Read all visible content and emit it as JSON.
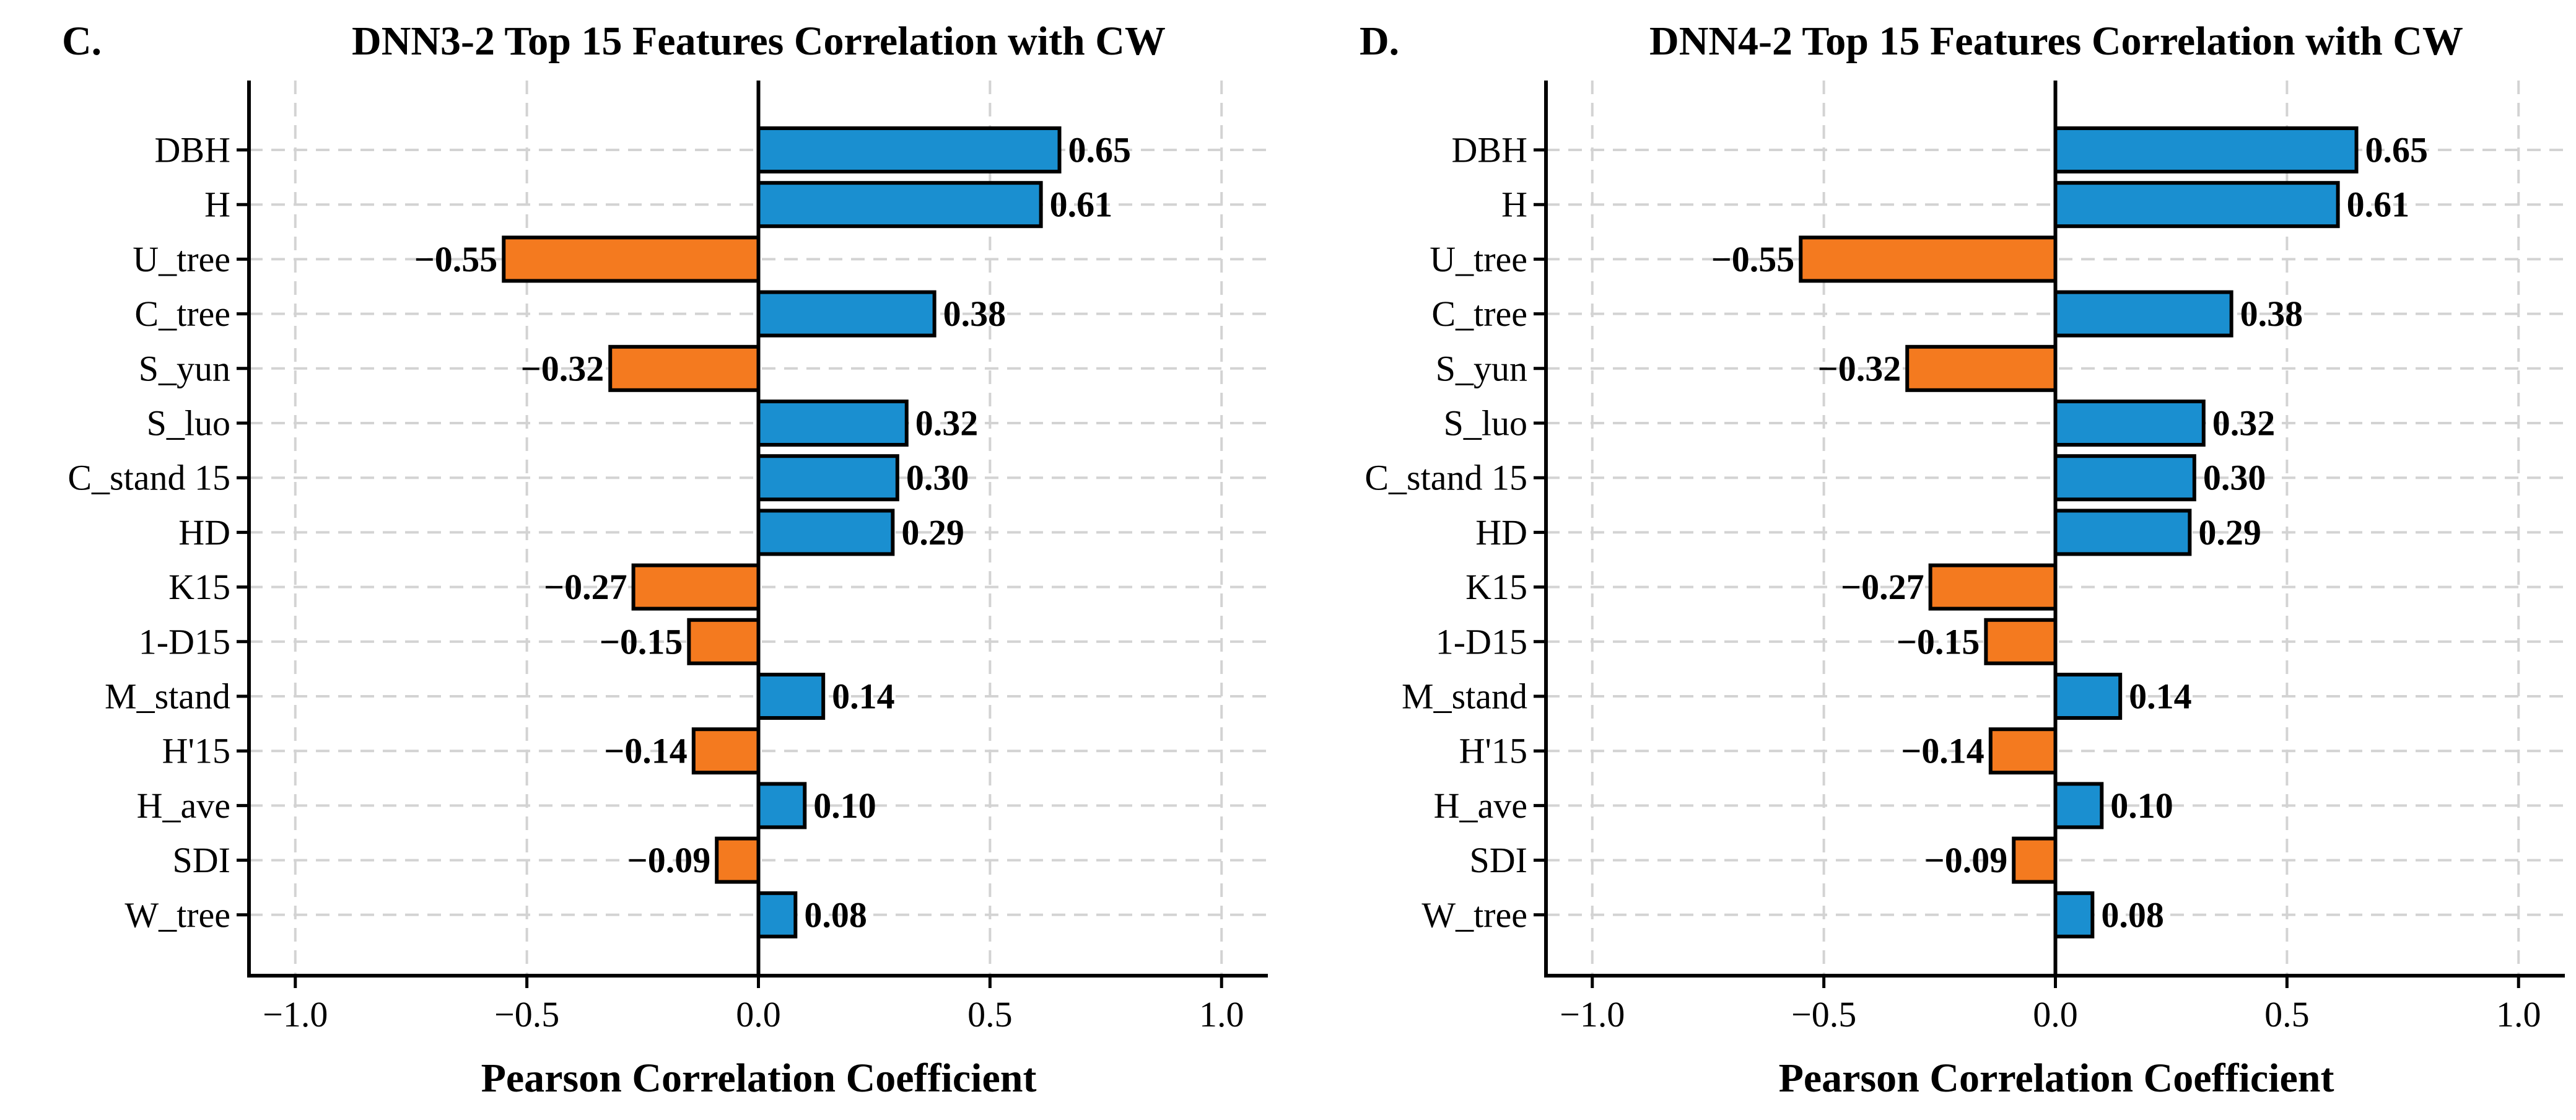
{
  "chart_data": [
    {
      "type": "bar",
      "orientation": "horizontal",
      "panel_letter": "C.",
      "title": "DNN3-2 Top 15 Features Correlation with CW",
      "xlabel": "Pearson Correlation Coefficient",
      "ylabel": "",
      "xlim": [
        -1.1,
        1.1
      ],
      "xticks": [
        -1.0,
        -0.5,
        0.0,
        0.5,
        1.0
      ],
      "xtick_labels": [
        "−1.0",
        "−0.5",
        "0.0",
        "0.5",
        "1.0"
      ],
      "grid": true,
      "categories": [
        "DBH",
        "H",
        "U_tree",
        "C_tree",
        "S_yun",
        "S_luo",
        "C_stand 15",
        "HD",
        "K15",
        "1-D15",
        "M_stand",
        "H'15",
        "H_ave",
        "SDI",
        "W_tree"
      ],
      "values": [
        0.65,
        0.61,
        -0.55,
        0.38,
        -0.32,
        0.32,
        0.3,
        0.29,
        -0.27,
        -0.15,
        0.14,
        -0.14,
        0.1,
        -0.09,
        0.08
      ],
      "value_labels": [
        "0.65",
        "0.61",
        "−0.55",
        "0.38",
        "−0.32",
        "0.32",
        "0.30",
        "0.29",
        "−0.27",
        "−0.15",
        "0.14",
        "−0.14",
        "0.10",
        "−0.09",
        "0.08"
      ],
      "colors": {
        "positive": "#1a8fd0",
        "negative": "#f47a1f"
      }
    },
    {
      "type": "bar",
      "orientation": "horizontal",
      "panel_letter": "D.",
      "title": "DNN4-2 Top 15 Features Correlation with CW",
      "xlabel": "Pearson Correlation Coefficient",
      "ylabel": "",
      "xlim": [
        -1.1,
        1.1
      ],
      "xticks": [
        -1.0,
        -0.5,
        0.0,
        0.5,
        1.0
      ],
      "xtick_labels": [
        "−1.0",
        "−0.5",
        "0.0",
        "0.5",
        "1.0"
      ],
      "grid": true,
      "categories": [
        "DBH",
        "H",
        "U_tree",
        "C_tree",
        "S_yun",
        "S_luo",
        "C_stand 15",
        "HD",
        "K15",
        "1-D15",
        "M_stand",
        "H'15",
        "H_ave",
        "SDI",
        "W_tree"
      ],
      "values": [
        0.65,
        0.61,
        -0.55,
        0.38,
        -0.32,
        0.32,
        0.3,
        0.29,
        -0.27,
        -0.15,
        0.14,
        -0.14,
        0.1,
        -0.09,
        0.08
      ],
      "value_labels": [
        "0.65",
        "0.61",
        "−0.55",
        "0.38",
        "−0.32",
        "0.32",
        "0.30",
        "0.29",
        "−0.27",
        "−0.15",
        "0.14",
        "−0.14",
        "0.10",
        "−0.09",
        "0.08"
      ],
      "colors": {
        "positive": "#1a8fd0",
        "negative": "#f47a1f"
      }
    }
  ]
}
